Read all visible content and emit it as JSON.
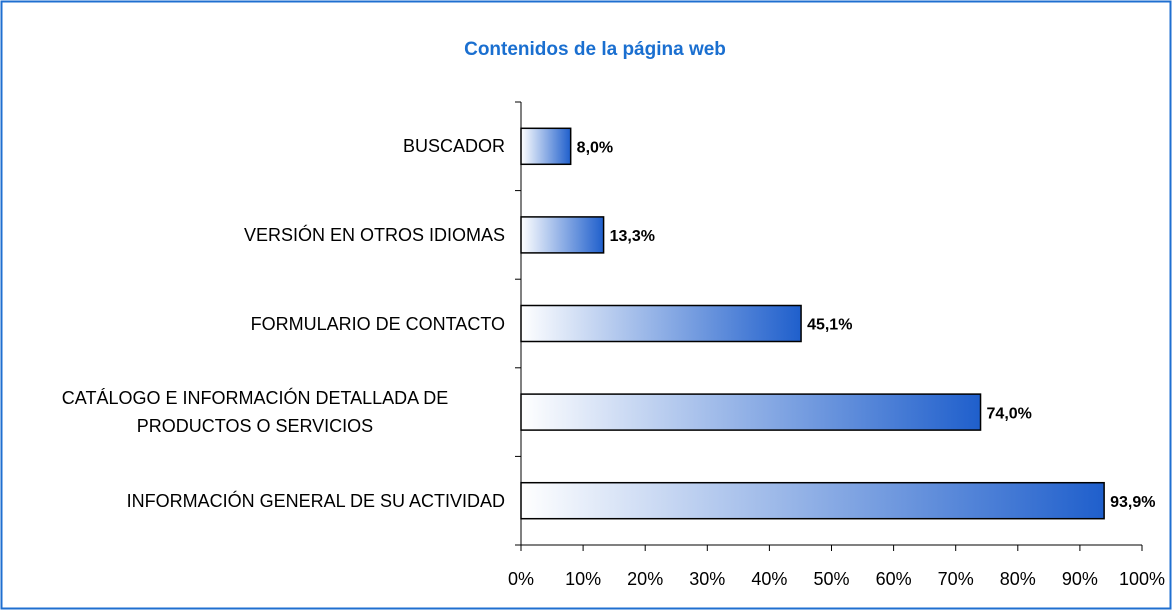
{
  "chart_data": {
    "type": "barh",
    "title": "Contenidos de la página web",
    "categories": [
      "BUSCADOR",
      "VERSIÓN EN OTROS IDIOMAS",
      "FORMULARIO DE CONTACTO",
      "CATÁLOGO E INFORMACIÓN DETALLADA DE PRODUCTOS O SERVICIOS",
      "INFORMACIÓN GENERAL DE SU ACTIVIDAD"
    ],
    "values": [
      8.0,
      13.3,
      45.1,
      74.0,
      93.9
    ],
    "value_labels": [
      "8,0%",
      "13,3%",
      "45,1%",
      "74,0%",
      "93,9%"
    ],
    "color": "#1f5fcc",
    "xlim": [
      0,
      100
    ],
    "xticks": [
      {
        "value": 0,
        "label": "0%"
      },
      {
        "value": 10,
        "label": "10%"
      },
      {
        "value": 20,
        "label": "20%"
      },
      {
        "value": 30,
        "label": "30%"
      },
      {
        "value": 40,
        "label": "40%"
      },
      {
        "value": 50,
        "label": "50%"
      },
      {
        "value": 60,
        "label": "60%"
      },
      {
        "value": 70,
        "label": "70%"
      },
      {
        "value": 80,
        "label": "80%"
      },
      {
        "value": 90,
        "label": "90%"
      },
      {
        "value": 100,
        "label": "100%"
      }
    ]
  }
}
